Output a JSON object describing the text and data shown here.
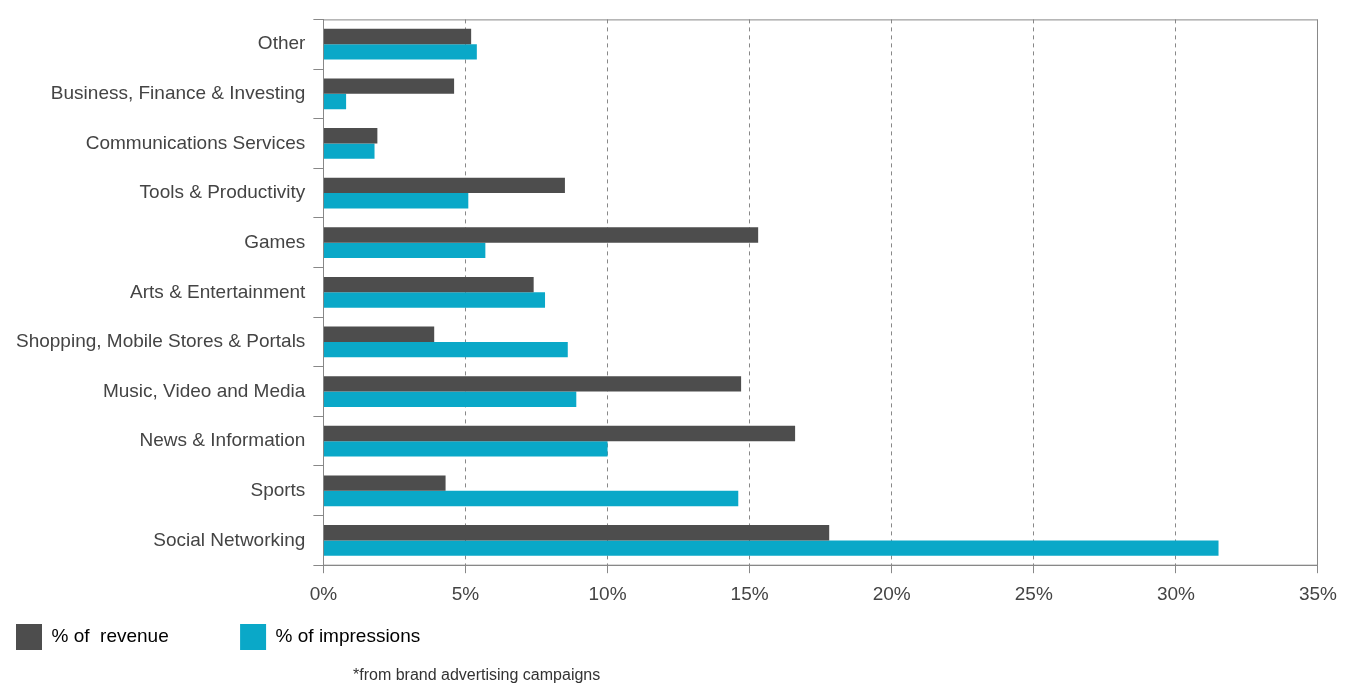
{
  "chart_data": {
    "type": "bar",
    "orientation": "horizontal",
    "categories": [
      "Other",
      "Business, Finance & Investing",
      "Communications Services",
      "Tools & Productivity",
      "Games",
      "Arts & Entertainment",
      "Shopping, Mobile Stores & Portals",
      "Music, Video and Media",
      "News & Information",
      "Sports",
      "Social Networking"
    ],
    "series": [
      {
        "name": "% of  revenue",
        "color": "#4d4d4d",
        "values": [
          5.2,
          4.6,
          1.9,
          8.5,
          15.3,
          7.4,
          3.9,
          14.7,
          16.6,
          4.3,
          17.8
        ]
      },
      {
        "name": "% of impressions",
        "color": "#0aa8c8",
        "values": [
          5.4,
          0.8,
          1.8,
          5.1,
          5.7,
          7.8,
          8.6,
          8.9,
          10.0,
          14.6,
          31.5
        ]
      }
    ],
    "xlim": [
      0,
      35
    ],
    "xticks": [
      {
        "value": 0,
        "label": "0%"
      },
      {
        "value": 5,
        "label": "5%"
      },
      {
        "value": 10,
        "label": "10%"
      },
      {
        "value": 15,
        "label": "15%"
      },
      {
        "value": 20,
        "label": "20%"
      },
      {
        "value": 25,
        "label": "25%"
      },
      {
        "value": 30,
        "label": "30%"
      },
      {
        "value": 35,
        "label": "35%"
      }
    ],
    "grid": "x",
    "legend": "bottom left",
    "annotations": [
      "*from brand advertising campaigns"
    ]
  }
}
